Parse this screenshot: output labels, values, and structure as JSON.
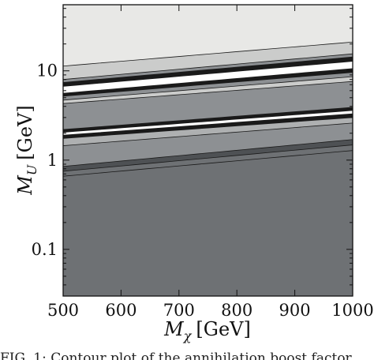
{
  "chart_data": {
    "type": "heatmap",
    "title": "",
    "x_axis": {
      "label_main": "M",
      "label_sub": "χ",
      "label_unit": "[GeV]",
      "range": [
        500,
        1000
      ],
      "scale": "linear",
      "ticks": [
        500,
        600,
        700,
        800,
        900,
        1000
      ],
      "tick_labels": [
        "500",
        "600",
        "700",
        "800",
        "900",
        "1000"
      ]
    },
    "y_axis": {
      "label_main": "M",
      "label_sub": "U",
      "label_unit": "[GeV]",
      "range": [
        0.03,
        55
      ],
      "scale": "log",
      "ticks": [
        0.1,
        1,
        10
      ],
      "tick_labels": [
        "0.1",
        "1",
        "10"
      ]
    },
    "contour_colors": [
      "#6e7174",
      "#4e5154",
      "#8d9093",
      "#aeb0b1",
      "#cbcccb",
      "#ffffff",
      "#1a1a1a",
      "#e8e8e6"
    ],
    "contours": [
      {
        "band": "dark-base",
        "fill": "#6e7174",
        "y_at_500": 0.66,
        "y_at_1000": 1.28
      },
      {
        "band": "dark-grey",
        "fill": "#4e5154",
        "y_at_500": 0.75,
        "y_at_1000": 1.48
      },
      {
        "band": "mid-grey",
        "fill": "#8d9093",
        "y_at_500": 0.85,
        "y_at_1000": 1.7
      },
      {
        "band": "light-grey",
        "fill": "#aeb0b1",
        "y_at_500": 1.45,
        "y_at_1000": 2.6
      },
      {
        "band": "black-line",
        "fill": "#1a1a1a",
        "y_at_500": 1.75,
        "y_at_1000": 3.0
      },
      {
        "band": "white",
        "fill": "#ffffff",
        "y_at_500": 1.9,
        "y_at_1000": 3.3
      },
      {
        "band": "black-line",
        "fill": "#1a1a1a",
        "y_at_500": 2.05,
        "y_at_1000": 3.6
      },
      {
        "band": "mid-grey",
        "fill": "#8d9093",
        "y_at_500": 2.2,
        "y_at_1000": 3.9
      },
      {
        "band": "light-grey",
        "fill": "#cbcccb",
        "y_at_500": 4.3,
        "y_at_1000": 7.6
      },
      {
        "band": "mid-grey",
        "fill": "#8d9093",
        "y_at_500": 4.7,
        "y_at_1000": 8.6
      },
      {
        "band": "black-line",
        "fill": "#1a1a1a",
        "y_at_500": 5.2,
        "y_at_1000": 9.6
      },
      {
        "band": "white",
        "fill": "#ffffff",
        "y_at_500": 5.6,
        "y_at_1000": 10.6
      },
      {
        "band": "black-line",
        "fill": "#1a1a1a",
        "y_at_500": 6.7,
        "y_at_1000": 12.8
      },
      {
        "band": "mid-grey",
        "fill": "#8d9093",
        "y_at_500": 7.4,
        "y_at_1000": 14.3
      },
      {
        "band": "light-grey",
        "fill": "#cbcccb",
        "y_at_500": 8.0,
        "y_at_1000": 15.5
      },
      {
        "band": "pale",
        "fill": "#e8e8e6",
        "y_at_500": 11.3,
        "y_at_1000": 21.0
      }
    ]
  },
  "caption": "FIG. 1: Contour plot of the annihilation boost factor"
}
